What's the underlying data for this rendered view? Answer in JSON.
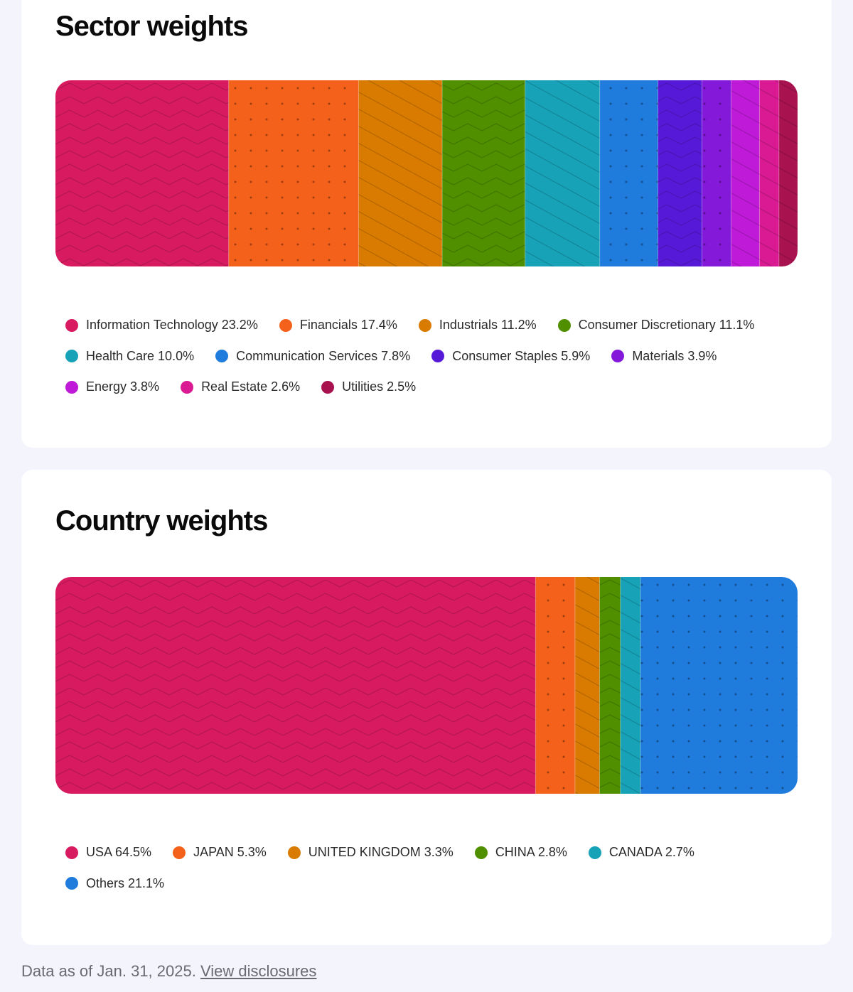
{
  "footnote": {
    "text": "Data as of Jan. 31, 2025.",
    "link_label": "View disclosures"
  },
  "chart_data": [
    {
      "type": "bar",
      "orientation": "horizontal-stacked",
      "title": "Sector weights",
      "unit": "%",
      "series": [
        {
          "name": "Information Technology",
          "value": 23.2,
          "label": "Information Technology 23.2%",
          "color": "#d81b60",
          "pattern": "zigzag"
        },
        {
          "name": "Financials",
          "value": 17.4,
          "label": "Financials 17.4%",
          "color": "#f4611a",
          "pattern": "dots"
        },
        {
          "name": "Industrials",
          "value": 11.2,
          "label": "Industrials 11.2%",
          "color": "#d97b00",
          "pattern": "diagonal"
        },
        {
          "name": "Consumer Discretionary",
          "value": 11.1,
          "label": "Consumer Discretionary 11.1%",
          "color": "#4f8f00",
          "pattern": "zigzag"
        },
        {
          "name": "Health Care",
          "value": 10.0,
          "label": "Health Care 10.0%",
          "color": "#17a2b8",
          "pattern": "diagonal"
        },
        {
          "name": "Communication Services",
          "value": 7.8,
          "label": "Communication Services 7.8%",
          "color": "#1f7bdc",
          "pattern": "dots"
        },
        {
          "name": "Consumer Staples",
          "value": 5.9,
          "label": "Consumer Staples 5.9%",
          "color": "#5719d8",
          "pattern": "zigzag"
        },
        {
          "name": "Materials",
          "value": 3.9,
          "label": "Materials 3.9%",
          "color": "#8419d9",
          "pattern": "dots"
        },
        {
          "name": "Energy",
          "value": 3.8,
          "label": "Energy 3.8%",
          "color": "#bf1ad8",
          "pattern": "diagonal"
        },
        {
          "name": "Real Estate",
          "value": 2.6,
          "label": "Real Estate 2.6%",
          "color": "#d91a92",
          "pattern": "diagonal"
        },
        {
          "name": "Utilities",
          "value": 2.5,
          "label": "Utilities 2.5%",
          "color": "#a8124f",
          "pattern": "diagonal"
        }
      ]
    },
    {
      "type": "bar",
      "orientation": "horizontal-stacked",
      "title": "Country weights",
      "unit": "%",
      "series": [
        {
          "name": "USA",
          "value": 64.5,
          "label": "USA 64.5%",
          "color": "#d81b60",
          "pattern": "zigzag"
        },
        {
          "name": "JAPAN",
          "value": 5.3,
          "label": "JAPAN 5.3%",
          "color": "#f4611a",
          "pattern": "dots"
        },
        {
          "name": "UNITED KINGDOM",
          "value": 3.3,
          "label": "UNITED KINGDOM 3.3%",
          "color": "#d97b00",
          "pattern": "diagonal"
        },
        {
          "name": "CHINA",
          "value": 2.8,
          "label": "CHINA 2.8%",
          "color": "#4f8f00",
          "pattern": "zigzag"
        },
        {
          "name": "CANADA",
          "value": 2.7,
          "label": "CANADA 2.7%",
          "color": "#17a2b8",
          "pattern": "diagonal"
        },
        {
          "name": "Others",
          "value": 21.1,
          "label": "Others 21.1%",
          "color": "#1f7bdc",
          "pattern": "dots"
        }
      ]
    }
  ]
}
